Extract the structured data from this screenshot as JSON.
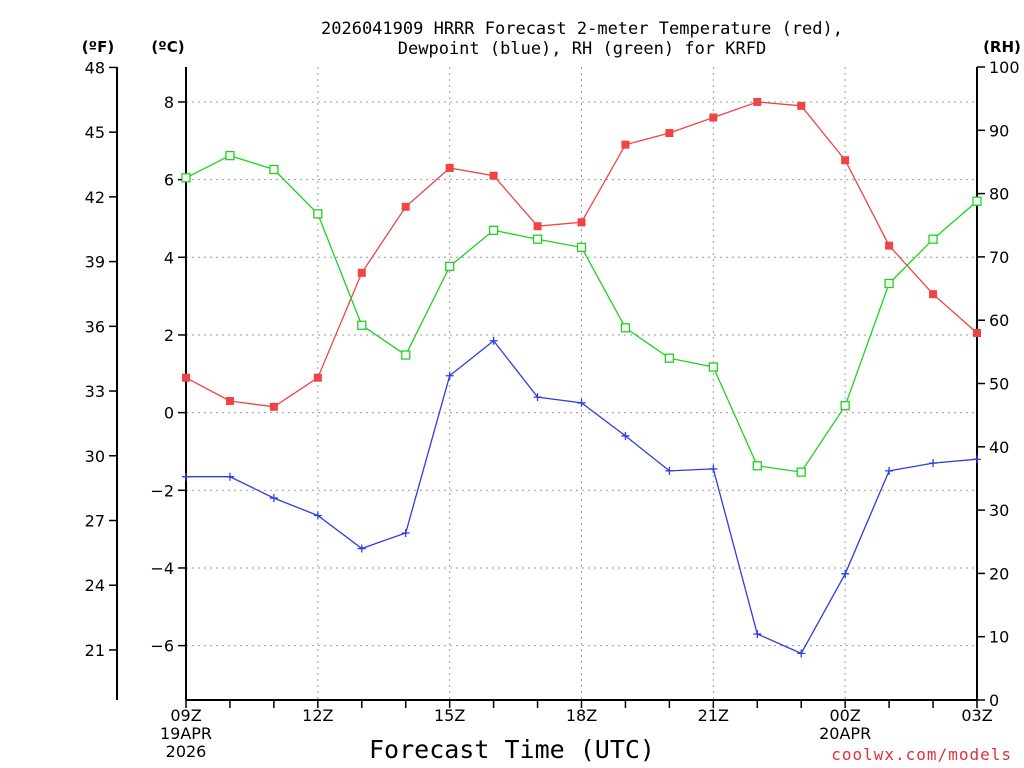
{
  "colors": {
    "temperature": "#ef4444",
    "dewpoint": "#2d3de0",
    "rh": "#1fd21f",
    "credit": "#e0303a"
  },
  "chart_data": {
    "type": "line",
    "title_line1": "2026041909 HRRR Forecast 2-meter Temperature (red),",
    "title_line2": "Dewpoint (blue), RH (green) for KRFD",
    "xlabel": "Forecast Time (UTC)",
    "credit": "coolwx.com/models",
    "unit_f": "(ºF)",
    "unit_c": "(ºC)",
    "unit_rh": "(RH)",
    "x_hours": [
      0,
      1,
      2,
      3,
      4,
      5,
      6,
      7,
      8,
      9,
      10,
      11,
      12,
      13,
      14,
      15,
      16,
      17,
      18
    ],
    "x_ticks": [
      {
        "hour": 0,
        "lines": [
          "09Z",
          "19APR",
          "2026"
        ]
      },
      {
        "hour": 3,
        "lines": [
          "12Z"
        ]
      },
      {
        "hour": 6,
        "lines": [
          "15Z"
        ]
      },
      {
        "hour": 9,
        "lines": [
          "18Z"
        ]
      },
      {
        "hour": 12,
        "lines": [
          "21Z"
        ]
      },
      {
        "hour": 15,
        "lines": [
          "00Z",
          "20APR"
        ]
      },
      {
        "hour": 18,
        "lines": [
          "03Z"
        ]
      }
    ],
    "ylim_c": [
      -7.4,
      8.9
    ],
    "ylim_f": [
      18.68,
      48.02
    ],
    "ylim_rh": [
      0,
      100
    ],
    "yticks_c": [
      -6,
      -4,
      -2,
      0,
      2,
      4,
      6,
      8
    ],
    "yticks_c_labels": [
      "−6",
      "−4",
      "−2",
      "0",
      "2",
      "4",
      "6",
      "8"
    ],
    "yticks_f": [
      21,
      24,
      27,
      30,
      33,
      36,
      39,
      42,
      45,
      48
    ],
    "yticks_rh": [
      0,
      10,
      20,
      30,
      40,
      50,
      60,
      70,
      80,
      90,
      100
    ],
    "series": [
      {
        "name": "Temperature (°C)",
        "color": "#ef4444",
        "marker": "square-filled",
        "values": [
          0.9,
          0.3,
          0.15,
          0.9,
          3.6,
          5.3,
          6.3,
          6.1,
          4.8,
          4.9,
          6.9,
          7.2,
          7.6,
          8.0,
          7.9,
          6.5,
          4.3,
          3.05,
          2.05
        ]
      },
      {
        "name": "Dewpoint (°C)",
        "color": "#2d3de0",
        "marker": "plus",
        "values": [
          -1.65,
          -1.65,
          -2.2,
          -2.65,
          -3.5,
          -3.1,
          0.95,
          1.85,
          0.4,
          0.25,
          -0.6,
          -1.5,
          -1.45,
          -5.7,
          -6.2,
          -4.15,
          -1.5,
          -1.3,
          -1.2
        ]
      },
      {
        "name": "RH (%)",
        "color": "#1fd21f",
        "marker": "square-open",
        "axis": "rh",
        "values": [
          82.5,
          86.0,
          83.8,
          76.8,
          59.2,
          54.5,
          68.5,
          74.2,
          72.8,
          71.5,
          58.8,
          54.0,
          52.6,
          37.0,
          36.0,
          46.5,
          65.8,
          72.8,
          78.8
        ]
      }
    ]
  }
}
